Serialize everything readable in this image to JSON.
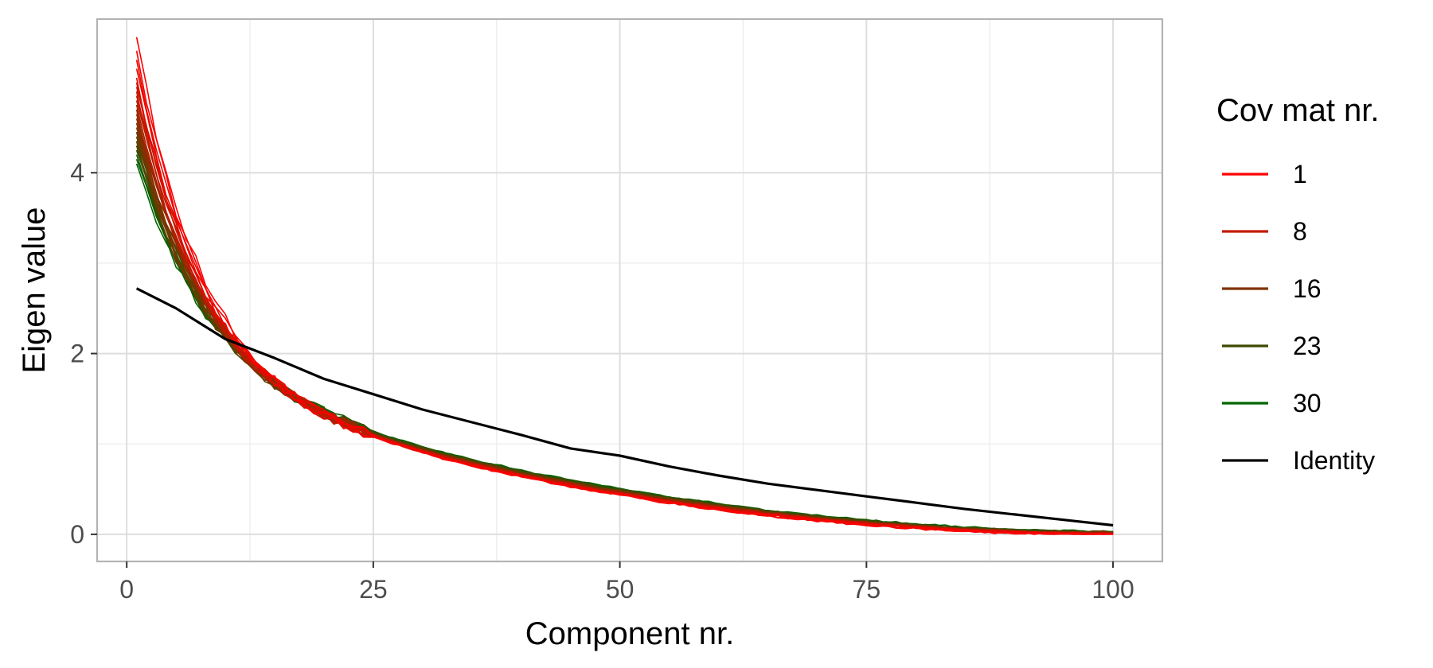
{
  "chart_data": {
    "type": "line",
    "title": "",
    "xlabel": "Component nr.",
    "ylabel": "Eigen value",
    "xlim": [
      -3,
      105
    ],
    "ylim": [
      -0.3,
      5.7
    ],
    "xticks": [
      0,
      25,
      50,
      75,
      100
    ],
    "xtick_labels": [
      "0",
      "25",
      "50",
      "75",
      "100"
    ],
    "yticks": [
      0,
      2,
      4
    ],
    "ytick_labels": [
      "0",
      "2",
      "4"
    ],
    "grid": true,
    "legend": {
      "title": "Cov mat nr.",
      "placement": "right",
      "entries": [
        {
          "label": "1",
          "color": "#ff0000"
        },
        {
          "label": "8",
          "color": "#c41a00"
        },
        {
          "label": "16",
          "color": "#7f3300"
        },
        {
          "label": "23",
          "color": "#3f4a00"
        },
        {
          "label": "30",
          "color": "#006400"
        },
        {
          "label": "Identity",
          "color": "#000000"
        }
      ]
    },
    "components": {
      "start": 1,
      "end": 100,
      "step": 1
    },
    "covariance_model": {
      "matrix_count": 30,
      "first_component_values": [
        5.45,
        5.3,
        5.2,
        5.1,
        5.0,
        4.95,
        4.9,
        4.85,
        4.8,
        4.75,
        4.7,
        4.65,
        4.6,
        4.55,
        4.5,
        4.45,
        4.4,
        4.35,
        4.3,
        4.25,
        4.5,
        4.4,
        4.35,
        4.3,
        4.25,
        4.2,
        4.2,
        4.15,
        4.1,
        4.05
      ],
      "last_component_value_range": [
        0.0,
        0.03
      ],
      "color_start": "#ff0000",
      "color_end": "#006400"
    },
    "series": [
      {
        "name": "Identity",
        "color": "#000000",
        "x": [
          1,
          5,
          10,
          15,
          20,
          25,
          30,
          35,
          40,
          45,
          50,
          55,
          60,
          65,
          70,
          75,
          80,
          85,
          90,
          95,
          100
        ],
        "values": [
          2.72,
          2.5,
          2.16,
          1.95,
          1.72,
          1.55,
          1.38,
          1.24,
          1.1,
          0.95,
          0.87,
          0.75,
          0.65,
          0.56,
          0.49,
          0.42,
          0.35,
          0.28,
          0.22,
          0.16,
          0.1
        ]
      }
    ]
  }
}
